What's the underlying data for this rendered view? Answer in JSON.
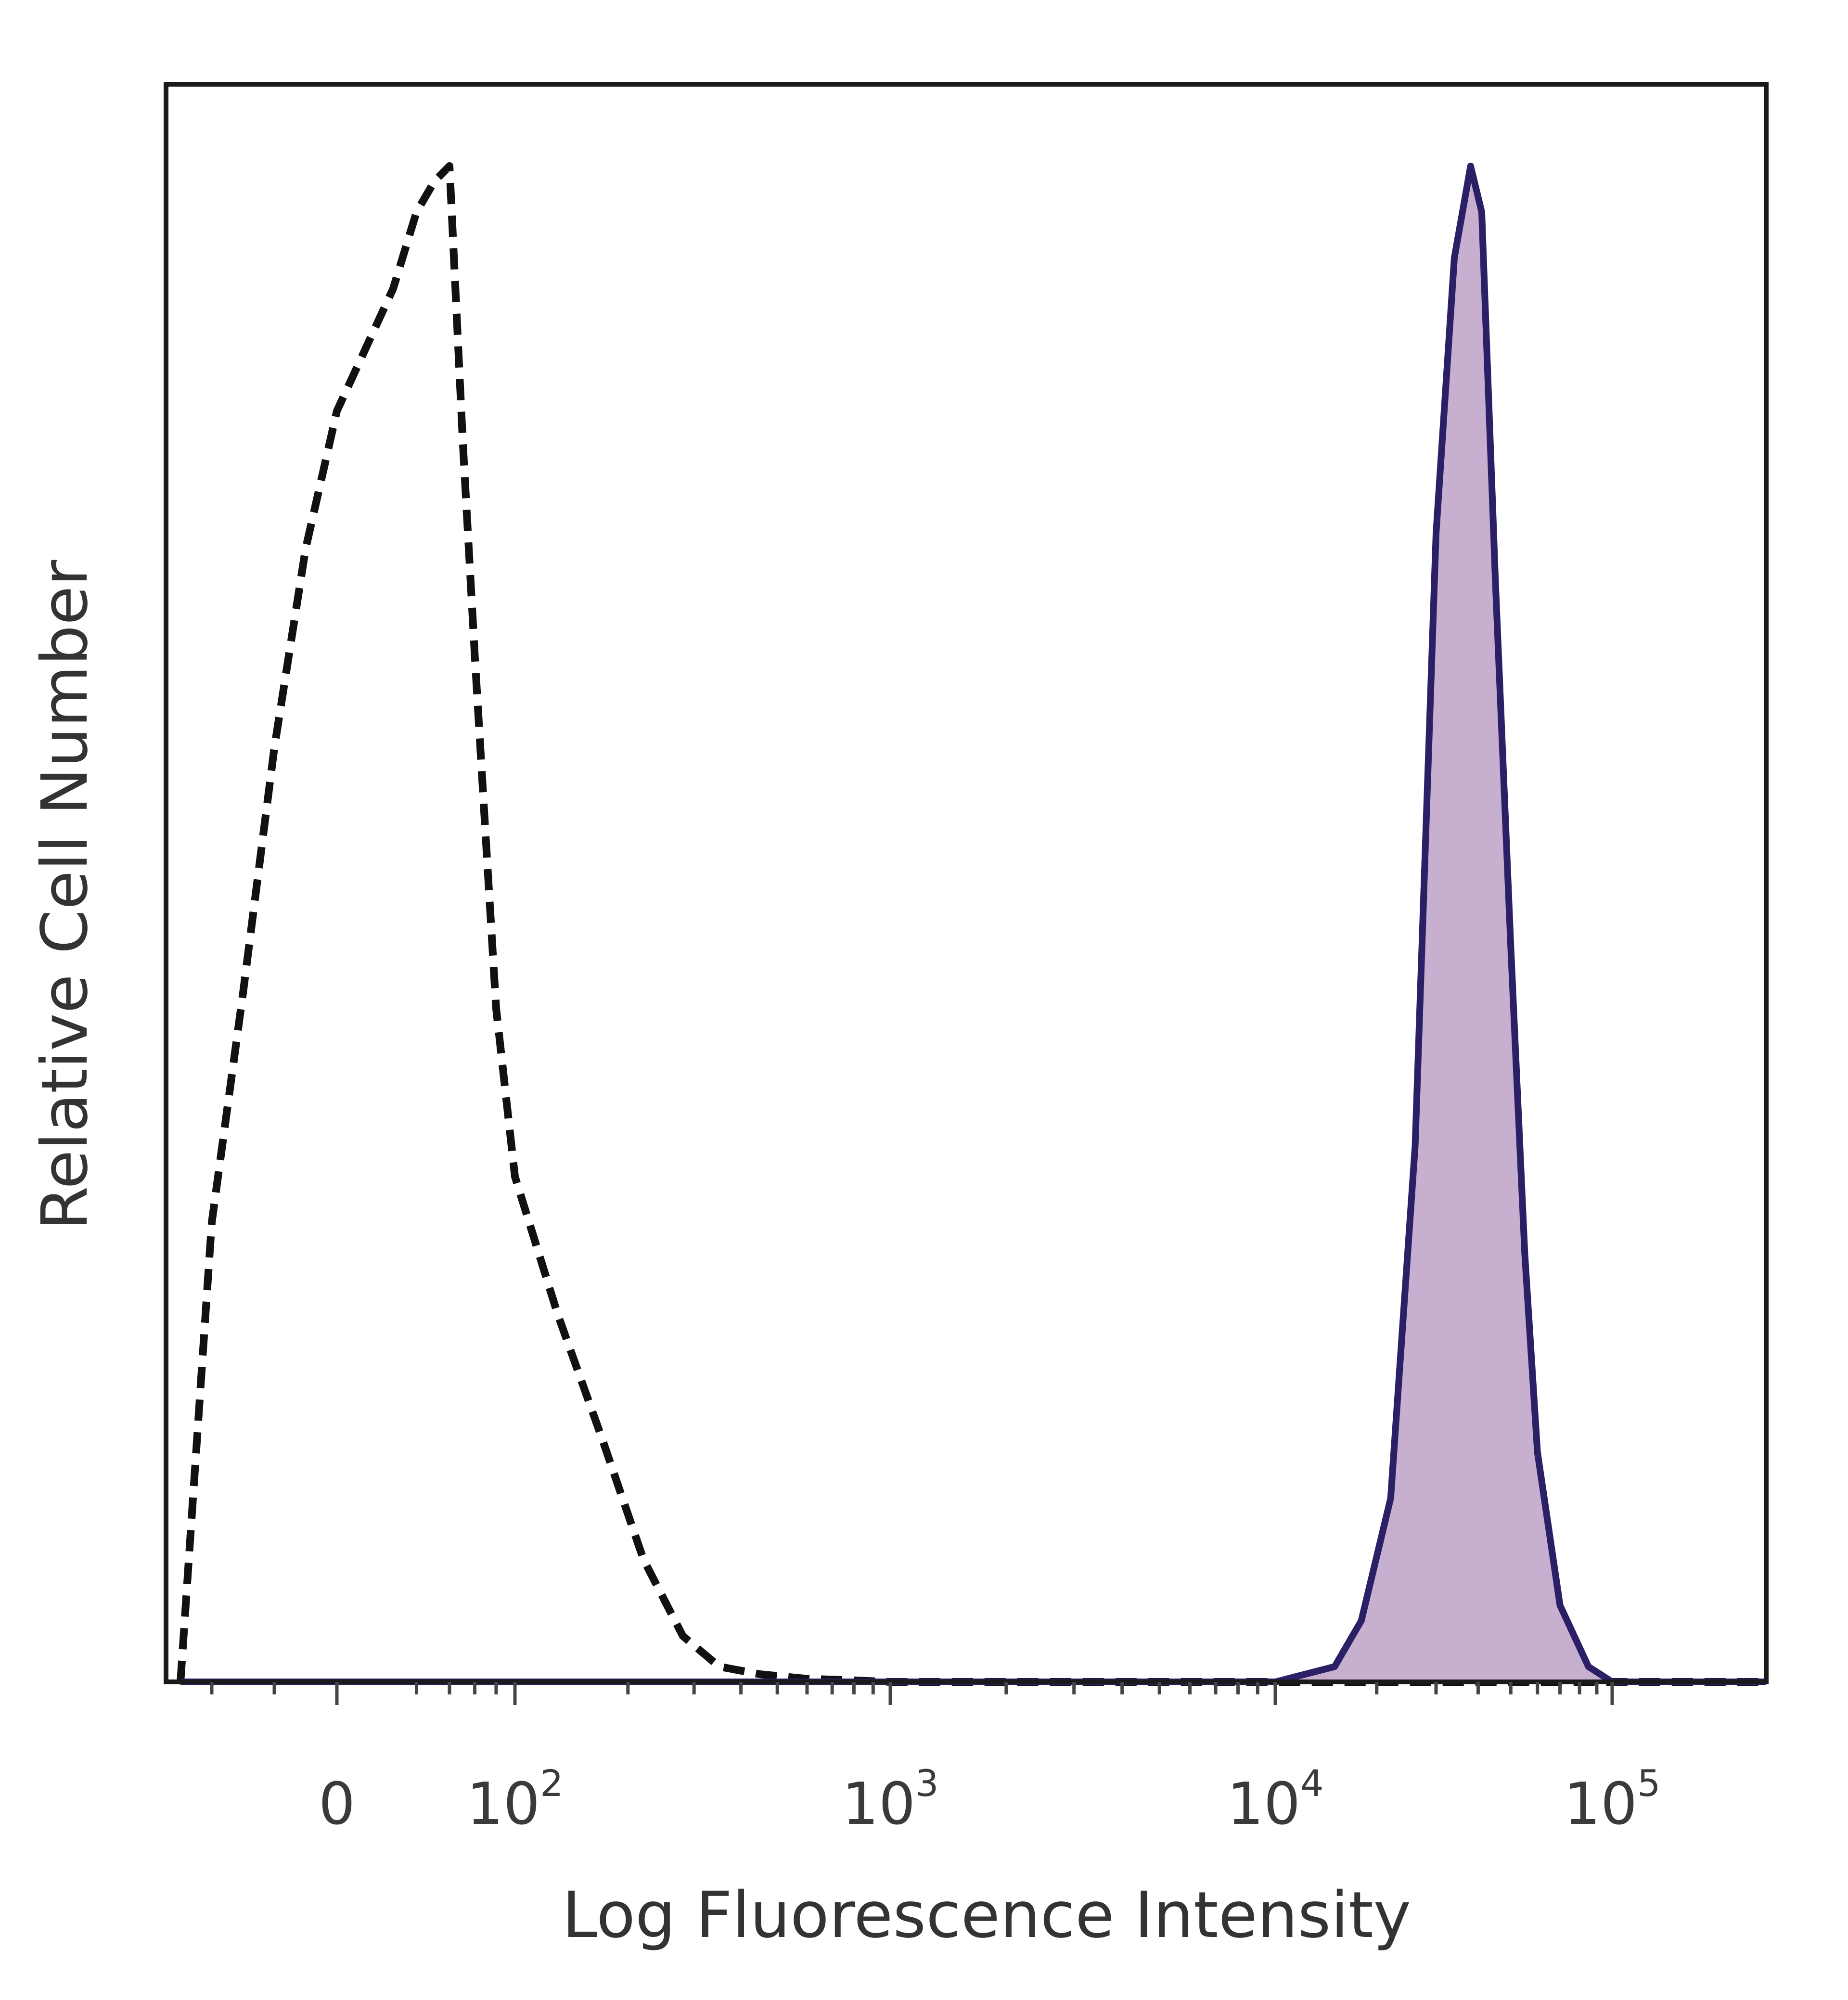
{
  "chart_data": {
    "type": "area",
    "title": "",
    "xlabel": "Log Fluorescence Intensity",
    "ylabel": "Relative Cell Number",
    "x_scale": "biexponential",
    "xlim": [
      -50,
      200000
    ],
    "ylim": [
      0,
      1.0
    ],
    "x_ticks": [
      {
        "base": "0",
        "exp": "",
        "value": 0
      },
      {
        "base": "10",
        "exp": "2",
        "value": 100
      },
      {
        "base": "10",
        "exp": "3",
        "value": 1000
      },
      {
        "base": "10",
        "exp": "4",
        "value": 10000
      },
      {
        "base": "10",
        "exp": "5",
        "value": 100000
      }
    ],
    "grid": false,
    "legend": "none",
    "series": [
      {
        "style": "dashed",
        "color": "#111111",
        "fill": "none",
        "x": [
          -50,
          -40,
          -30,
          -20,
          -10,
          0,
          10,
          20,
          30,
          40,
          50,
          60,
          70,
          80,
          100,
          130,
          170,
          220,
          280,
          350,
          450,
          600,
          800,
          1000,
          2000,
          5000,
          10000,
          15000,
          25000,
          50000,
          100000,
          200000
        ],
        "y": [
          0.0,
          0.3,
          0.45,
          0.61,
          0.74,
          0.83,
          0.91,
          0.96,
          0.98,
          0.99,
          0.81,
          0.67,
          0.55,
          0.44,
          0.33,
          0.24,
          0.16,
          0.08,
          0.03,
          0.01,
          0.005,
          0.002,
          0.001,
          0.0,
          0.0,
          0.0,
          0.0,
          0.0,
          0.0,
          0.0,
          0.0,
          0.0
        ]
      },
      {
        "style": "solid",
        "color": "#2b1f66",
        "fill": "#c7afcf",
        "x": [
          -50,
          1000,
          10000,
          15000,
          18000,
          22000,
          26000,
          30000,
          34000,
          38000,
          41000,
          45000,
          50000,
          55000,
          60000,
          70000,
          85000,
          100000,
          200000
        ],
        "y": [
          0.0,
          0.0,
          0.0,
          0.01,
          0.04,
          0.12,
          0.35,
          0.75,
          0.93,
          0.99,
          0.96,
          0.72,
          0.48,
          0.28,
          0.15,
          0.05,
          0.01,
          0.0,
          0.0
        ]
      }
    ]
  }
}
